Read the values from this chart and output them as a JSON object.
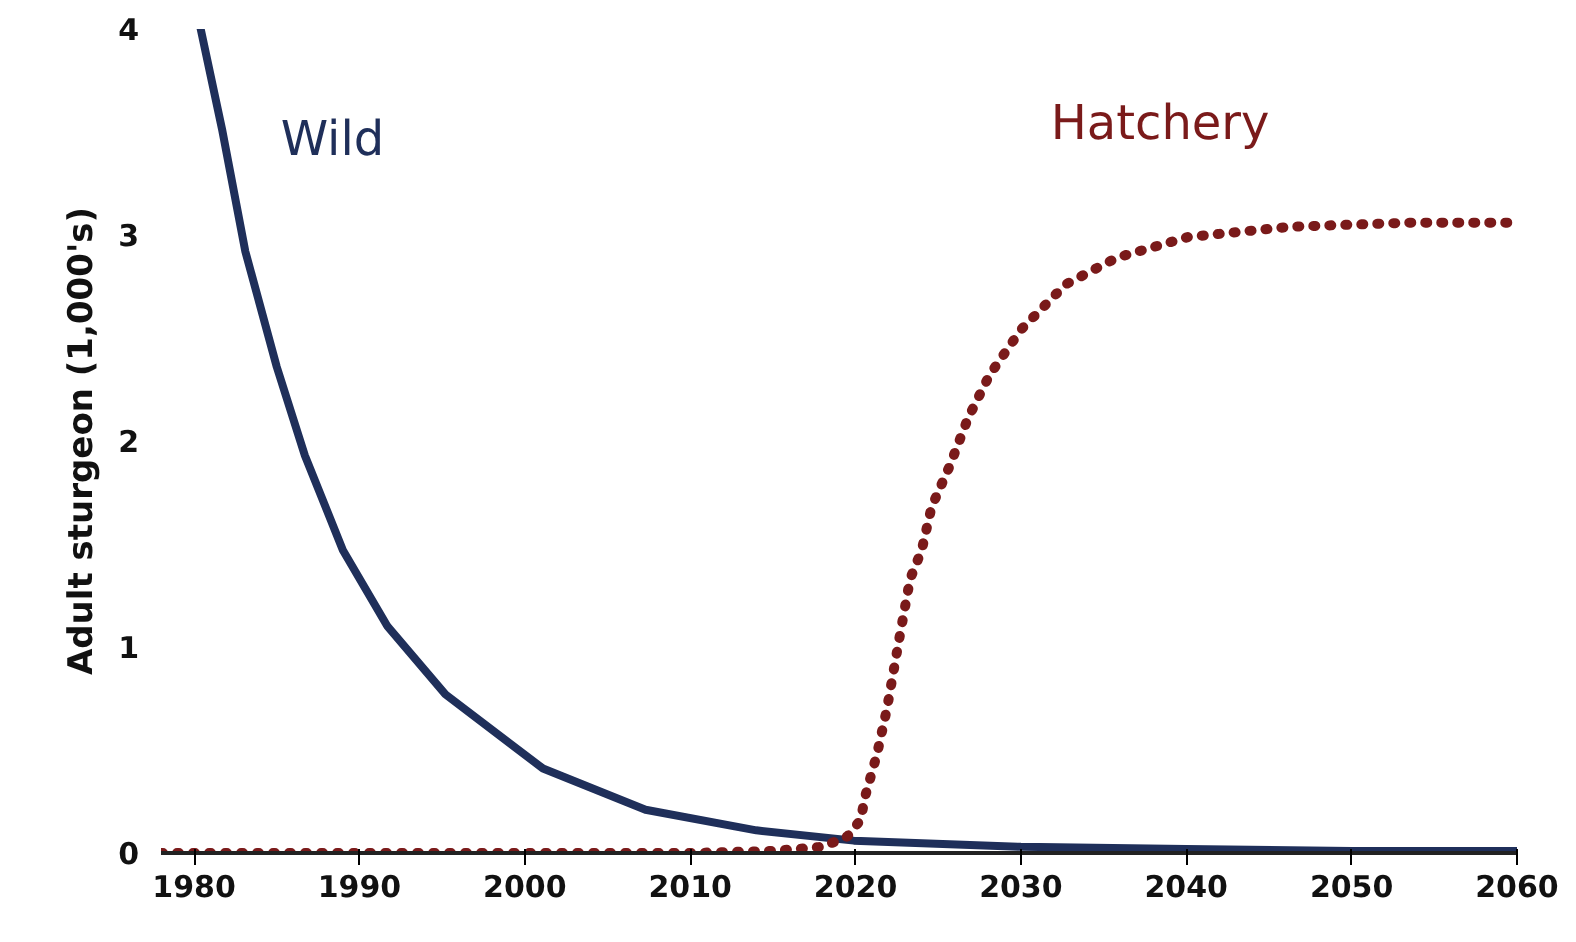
{
  "chart_data": {
    "type": "line",
    "ylabel": "Adult sturgeon (1,000's)",
    "xlim": [
      1978,
      2060
    ],
    "xticks": [
      1980,
      1990,
      2000,
      2010,
      2020,
      2030,
      2040,
      2050,
      2060
    ],
    "ylim": [
      0,
      4
    ],
    "yticks": [
      0,
      1,
      2,
      3,
      4
    ],
    "grid": false,
    "series": [
      {
        "name": "Wild",
        "color": "#1f2f5a",
        "line_style": "solid",
        "x": [
          1980.4,
          1981.7,
          1983.1,
          1985.0,
          1986.7,
          1989.0,
          1991.7,
          1995.2,
          2001.1,
          2007.3,
          2014.0,
          2019.9,
          2030,
          2040,
          2050,
          2060
        ],
        "values": [
          4.0,
          3.51,
          2.92,
          2.36,
          1.93,
          1.47,
          1.1,
          0.77,
          0.41,
          0.21,
          0.11,
          0.06,
          0.03,
          0.02,
          0.01,
          0.01
        ]
      },
      {
        "name": "Hatchery",
        "color": "#7a1a1a",
        "line_style": "dotted",
        "x": [
          1978,
          1990,
          2000,
          2010,
          2015,
          2018,
          2019.5,
          2020.3,
          2020.6,
          2021.3,
          2021.9,
          2022.6,
          2023.3,
          2024.0,
          2024.6,
          2025.7,
          2026.8,
          2028.1,
          2030.0,
          2032.7,
          2035.8,
          2040.1,
          2046.3,
          2053.5,
          2059.7
        ],
        "values": [
          0,
          0,
          0,
          0,
          0.01,
          0.03,
          0.08,
          0.16,
          0.28,
          0.48,
          0.7,
          1.02,
          1.33,
          1.47,
          1.68,
          1.88,
          2.11,
          2.32,
          2.54,
          2.76,
          2.89,
          2.99,
          3.04,
          3.06,
          3.06
        ]
      }
    ]
  }
}
